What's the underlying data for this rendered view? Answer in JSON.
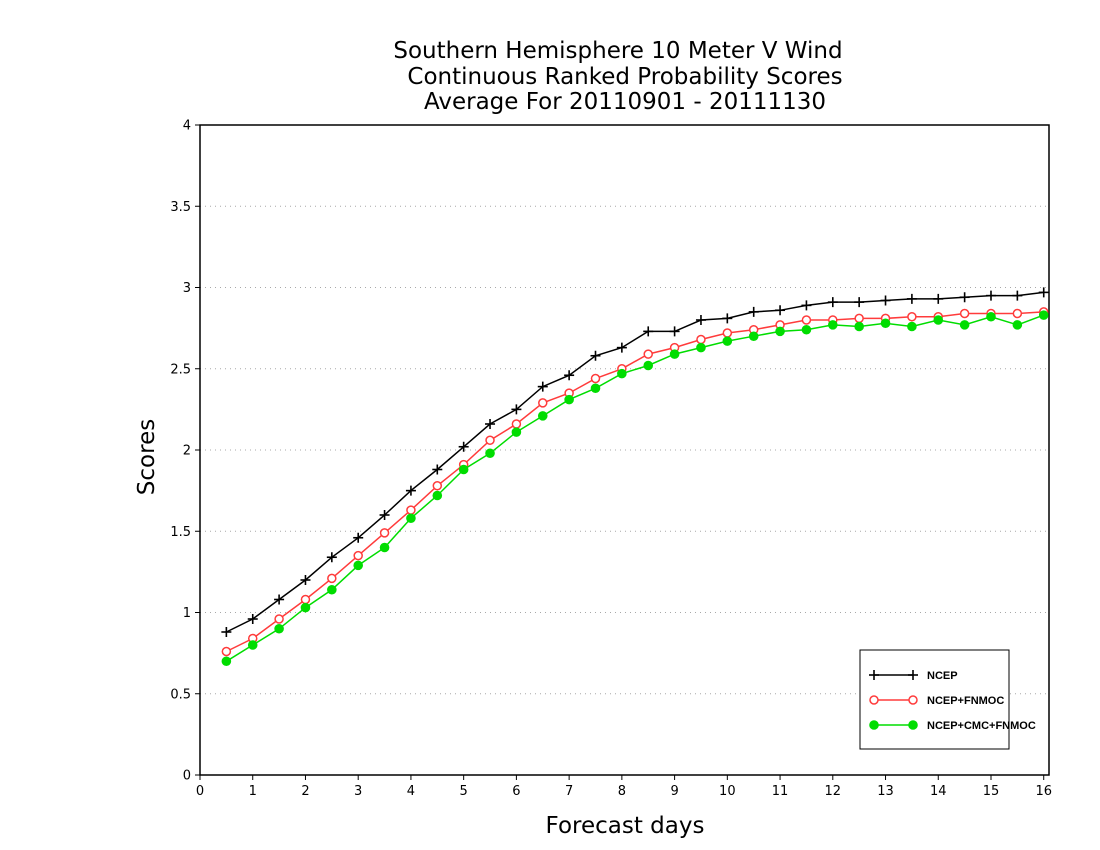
{
  "chart_data": {
    "type": "line",
    "title": [
      "Southern Hemisphere 10 Meter V Wind",
      "Continuous Ranked Probability Scores",
      "Average For 20110901 - 20111130"
    ],
    "xlabel": "Forecast days",
    "ylabel": "Scores",
    "xlim": [
      0,
      16.1
    ],
    "ylim": [
      0,
      4
    ],
    "xticks": [
      "0",
      "1",
      "2",
      "3",
      "4",
      "5",
      "6",
      "7",
      "8",
      "9",
      "10",
      "11",
      "12",
      "13",
      "14",
      "15",
      "16"
    ],
    "yticks": [
      "0",
      "0.5",
      "1",
      "1.5",
      "2",
      "2.5",
      "3",
      "3.5",
      "4"
    ],
    "grid": "horizontal dotted",
    "legend_position": "bottom-right",
    "x": [
      0.5,
      1,
      1.5,
      2,
      2.5,
      3,
      3.5,
      4,
      4.5,
      5,
      5.5,
      6,
      6.5,
      7,
      7.5,
      8,
      8.5,
      9,
      9.5,
      10,
      10.5,
      11,
      11.5,
      12,
      12.5,
      13,
      13.5,
      14,
      14.5,
      15,
      15.5,
      16
    ],
    "series": [
      {
        "name": "NCEP",
        "color": "#000000",
        "marker": "plus",
        "values": [
          0.88,
          0.96,
          1.08,
          1.2,
          1.34,
          1.46,
          1.6,
          1.75,
          1.88,
          2.02,
          2.16,
          2.25,
          2.39,
          2.46,
          2.58,
          2.63,
          2.73,
          2.73,
          2.8,
          2.81,
          2.85,
          2.86,
          2.89,
          2.91,
          2.91,
          2.92,
          2.93,
          2.93,
          2.94,
          2.95,
          2.95,
          2.97
        ]
      },
      {
        "name": "NCEP+FNMOC",
        "color": "#ff3b3b",
        "marker": "open-circle",
        "values": [
          0.76,
          0.84,
          0.96,
          1.08,
          1.21,
          1.35,
          1.49,
          1.63,
          1.78,
          1.91,
          2.06,
          2.16,
          2.29,
          2.35,
          2.44,
          2.5,
          2.59,
          2.63,
          2.68,
          2.72,
          2.74,
          2.77,
          2.8,
          2.8,
          2.81,
          2.81,
          2.82,
          2.82,
          2.84,
          2.84,
          2.84,
          2.85
        ]
      },
      {
        "name": "NCEP+CMC+FNMOC",
        "color": "#00dd00",
        "marker": "filled-circle",
        "values": [
          0.7,
          0.8,
          0.9,
          1.03,
          1.14,
          1.29,
          1.4,
          1.58,
          1.72,
          1.88,
          1.98,
          2.11,
          2.21,
          2.31,
          2.38,
          2.47,
          2.52,
          2.59,
          2.63,
          2.67,
          2.7,
          2.73,
          2.74,
          2.77,
          2.76,
          2.78,
          2.76,
          2.8,
          2.77,
          2.82,
          2.77,
          2.83
        ]
      }
    ]
  }
}
